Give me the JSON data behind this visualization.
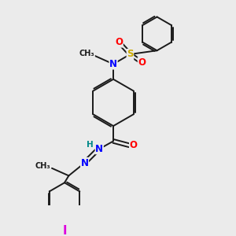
{
  "bg_color": "#ebebeb",
  "bond_color": "#1a1a1a",
  "bond_width": 1.4,
  "atom_colors": {
    "N": "#0000ff",
    "O": "#ff0000",
    "S": "#ccaa00",
    "I": "#dd00dd",
    "H": "#008888",
    "C": "#1a1a1a"
  },
  "font_size": 8.5
}
